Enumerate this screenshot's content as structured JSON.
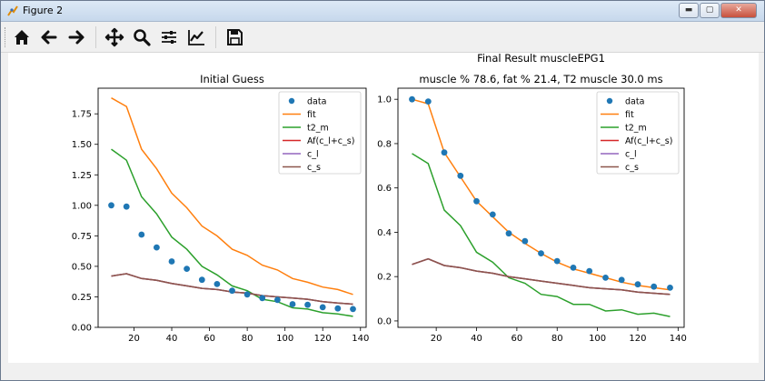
{
  "window": {
    "title": "Figure 2"
  },
  "toolbar": {
    "buttons": [
      {
        "name": "home",
        "icon": "home-icon"
      },
      {
        "name": "back",
        "icon": "arrow-left-icon"
      },
      {
        "name": "forward",
        "icon": "arrow-right-icon"
      },
      {
        "name": "pan",
        "icon": "move-icon"
      },
      {
        "name": "zoom",
        "icon": "magnifier-icon"
      },
      {
        "name": "subplots",
        "icon": "sliders-icon"
      },
      {
        "name": "axes",
        "icon": "line-chart-icon"
      },
      {
        "name": "save",
        "icon": "floppy-disk-icon"
      }
    ]
  },
  "chart_data": [
    {
      "type": "line",
      "title": "Initial Guess",
      "subtitle": "",
      "xlabel": "",
      "ylabel": "",
      "xlim": [
        1,
        143
      ],
      "ylim": [
        0,
        1.96
      ],
      "xticks": [
        20,
        40,
        60,
        80,
        100,
        120,
        140
      ],
      "yticks": [
        0.0,
        0.25,
        0.5,
        0.75,
        1.0,
        1.25,
        1.5,
        1.75
      ],
      "ytick_labels": [
        "0.00",
        "0.25",
        "0.50",
        "0.75",
        "1.00",
        "1.25",
        "1.50",
        "1.75"
      ],
      "legend": "top-right",
      "grid": false,
      "x": [
        8,
        16,
        24,
        32,
        40,
        48,
        56,
        64,
        72,
        80,
        88,
        96,
        104,
        112,
        120,
        128,
        136
      ],
      "series": [
        {
          "name": "data",
          "style": "markers",
          "color": "#1f77b4",
          "values": [
            1.0,
            0.99,
            0.76,
            0.655,
            0.54,
            0.48,
            0.39,
            0.355,
            0.3,
            0.27,
            0.24,
            0.225,
            0.19,
            0.185,
            0.165,
            0.155,
            0.15
          ]
        },
        {
          "name": "fit",
          "style": "line",
          "color": "#ff7f0e",
          "values": [
            1.88,
            1.81,
            1.46,
            1.3,
            1.1,
            0.98,
            0.83,
            0.75,
            0.64,
            0.59,
            0.51,
            0.47,
            0.4,
            0.37,
            0.33,
            0.31,
            0.27
          ]
        },
        {
          "name": "t2_m",
          "style": "line",
          "color": "#2ca02c",
          "values": [
            1.46,
            1.37,
            1.07,
            0.93,
            0.74,
            0.64,
            0.5,
            0.43,
            0.34,
            0.3,
            0.23,
            0.21,
            0.16,
            0.15,
            0.12,
            0.11,
            0.09
          ]
        },
        {
          "name": "Af(c_l+c_s)",
          "style": "line",
          "color": "#d62728",
          "values": [
            0.42,
            0.44,
            0.4,
            0.385,
            0.36,
            0.34,
            0.32,
            0.31,
            0.29,
            0.28,
            0.26,
            0.25,
            0.24,
            0.23,
            0.21,
            0.2,
            0.19
          ]
        },
        {
          "name": "c_l",
          "style": "line",
          "color": "#9467bd",
          "values": [
            0.42,
            0.44,
            0.4,
            0.385,
            0.36,
            0.34,
            0.32,
            0.31,
            0.29,
            0.28,
            0.26,
            0.25,
            0.24,
            0.23,
            0.21,
            0.2,
            0.19
          ]
        },
        {
          "name": "c_s",
          "style": "line",
          "color": "#8c564b",
          "values": [
            0.42,
            0.44,
            0.4,
            0.385,
            0.36,
            0.34,
            0.32,
            0.31,
            0.29,
            0.28,
            0.26,
            0.25,
            0.24,
            0.23,
            0.21,
            0.2,
            0.19
          ]
        }
      ]
    },
    {
      "type": "line",
      "title": "Final Result muscleEPG1",
      "subtitle": "muscle % 78.6, fat % 21.4,  T2 muscle 30.0 ms",
      "xlabel": "",
      "ylabel": "",
      "xlim": [
        1,
        143
      ],
      "ylim": [
        -0.029,
        1.05
      ],
      "xticks": [
        20,
        40,
        60,
        80,
        100,
        120,
        140
      ],
      "yticks": [
        0.0,
        0.2,
        0.4,
        0.6,
        0.8,
        1.0
      ],
      "ytick_labels": [
        "0.0",
        "0.2",
        "0.4",
        "0.6",
        "0.8",
        "1.0"
      ],
      "legend": "top-right",
      "grid": false,
      "x": [
        8,
        16,
        24,
        32,
        40,
        48,
        56,
        64,
        72,
        80,
        88,
        96,
        104,
        112,
        120,
        128,
        136
      ],
      "series": [
        {
          "name": "data",
          "style": "markers",
          "color": "#1f77b4",
          "values": [
            1.0,
            0.99,
            0.76,
            0.655,
            0.54,
            0.48,
            0.395,
            0.36,
            0.305,
            0.27,
            0.24,
            0.225,
            0.195,
            0.185,
            0.165,
            0.155,
            0.15
          ]
        },
        {
          "name": "fit",
          "style": "line",
          "color": "#ff7f0e",
          "values": [
            1.0,
            0.98,
            0.76,
            0.65,
            0.54,
            0.47,
            0.4,
            0.35,
            0.305,
            0.265,
            0.235,
            0.215,
            0.195,
            0.175,
            0.16,
            0.15,
            0.14
          ]
        },
        {
          "name": "t2_m",
          "style": "line",
          "color": "#2ca02c",
          "values": [
            0.755,
            0.71,
            0.5,
            0.43,
            0.31,
            0.265,
            0.195,
            0.17,
            0.12,
            0.11,
            0.075,
            0.075,
            0.045,
            0.05,
            0.03,
            0.035,
            0.02
          ]
        },
        {
          "name": "Af(c_l+c_s)",
          "style": "line",
          "color": "#d62728",
          "values": [
            0.255,
            0.28,
            0.25,
            0.24,
            0.225,
            0.215,
            0.2,
            0.19,
            0.18,
            0.17,
            0.16,
            0.15,
            0.145,
            0.14,
            0.13,
            0.125,
            0.12
          ]
        },
        {
          "name": "c_l",
          "style": "line",
          "color": "#9467bd",
          "values": [
            0.255,
            0.28,
            0.25,
            0.24,
            0.225,
            0.215,
            0.2,
            0.19,
            0.18,
            0.17,
            0.16,
            0.15,
            0.145,
            0.14,
            0.13,
            0.125,
            0.12
          ]
        },
        {
          "name": "c_s",
          "style": "line",
          "color": "#8c564b",
          "values": [
            0.255,
            0.28,
            0.25,
            0.24,
            0.225,
            0.215,
            0.2,
            0.19,
            0.18,
            0.17,
            0.16,
            0.15,
            0.145,
            0.14,
            0.13,
            0.125,
            0.12
          ]
        }
      ]
    }
  ]
}
